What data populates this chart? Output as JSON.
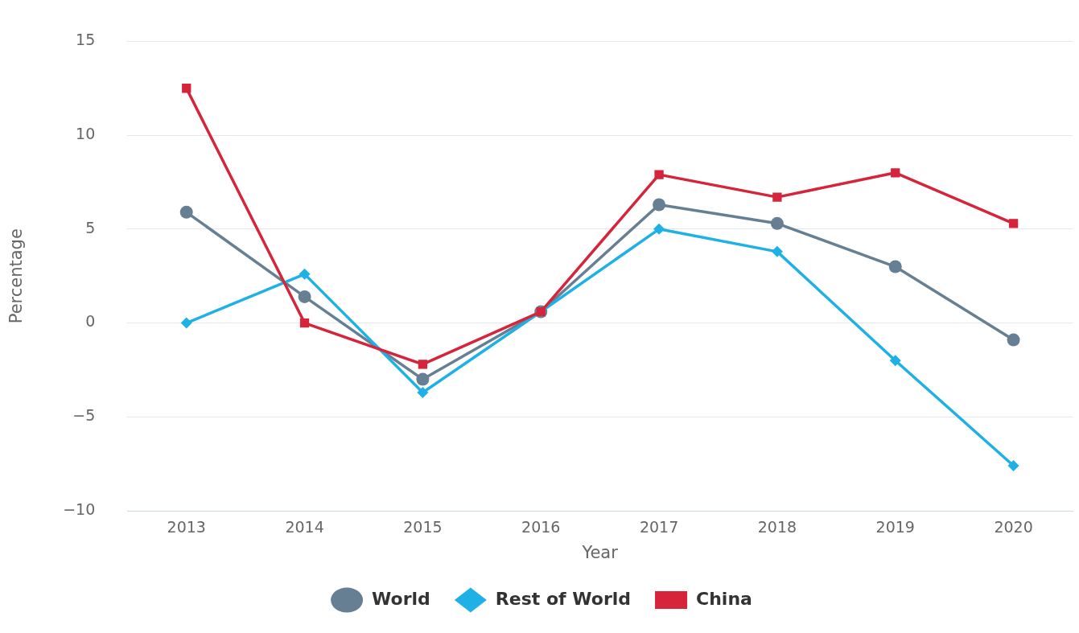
{
  "chart_data": {
    "type": "line",
    "xlabel": "Year",
    "ylabel": "Percentage",
    "categories": [
      "2013",
      "2014",
      "2015",
      "2016",
      "2017",
      "2018",
      "2019",
      "2020"
    ],
    "series": [
      {
        "name": "World",
        "color": "#677f92",
        "marker": "circle",
        "values": [
          5.9,
          1.4,
          -3.0,
          0.6,
          6.3,
          5.3,
          3.0,
          -0.9
        ]
      },
      {
        "name": "Rest of World",
        "color": "#1fb1e6",
        "marker": "diamond",
        "values": [
          0.0,
          2.6,
          -3.7,
          0.6,
          5.0,
          3.8,
          -2.0,
          -7.6
        ]
      },
      {
        "name": "China",
        "color": "#d6243b",
        "marker": "square",
        "values": [
          12.5,
          0.0,
          -2.2,
          0.6,
          7.9,
          6.7,
          8.0,
          5.3
        ]
      }
    ],
    "ylim": [
      -10,
      15
    ],
    "yticks": [
      -10,
      -5,
      0,
      5,
      10,
      15
    ],
    "grid": "y",
    "legend": "bottom"
  }
}
